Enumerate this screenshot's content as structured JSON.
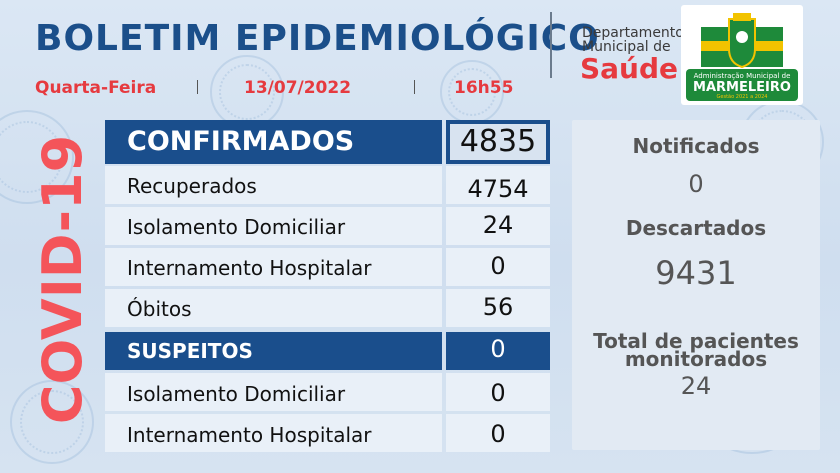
{
  "header": {
    "title": "BOLETIM EPIDEMIOLÓGICO",
    "weekday": "Quarta-Feira",
    "date": "13/07/2022",
    "time": "16h55",
    "department_line1": "Departamento",
    "department_line2": "Municipal de",
    "department_name": "Saúde"
  },
  "logo": {
    "text_top": "Administração Municipal de",
    "text_main": "MARMELEIRO",
    "text_bottom": "Gestão 2021 a 2024"
  },
  "side_label": "COVID-19",
  "table": {
    "confirmados": {
      "label": "CONFIRMADOS",
      "value": "4835"
    },
    "rows": [
      {
        "label": "Recuperados",
        "value": "4754"
      },
      {
        "label": "Isolamento Domiciliar",
        "value": "24"
      },
      {
        "label": "Internamento Hospitalar",
        "value": "0"
      },
      {
        "label": "Óbitos",
        "value": "56"
      }
    ],
    "suspeitos": {
      "label": "SUSPEITOS",
      "value": "0"
    },
    "suspeitos_rows": [
      {
        "label": "Isolamento Domiciliar",
        "value": "0"
      },
      {
        "label": "Internamento Hospitalar",
        "value": "0"
      }
    ]
  },
  "right": {
    "notificados_label": "Notificados",
    "notificados_value": "0",
    "descartados_label": "Descartados",
    "descartados_value": "9431",
    "monitorados_label1": "Total de pacientes",
    "monitorados_label2": "monitorados",
    "monitorados_value": "24"
  },
  "colors": {
    "primary": "#1a4e8c",
    "accent": "#e63a3f",
    "covid": "#f4545a",
    "logo_green": "#1e8a3a",
    "logo_yellow": "#f2c300"
  }
}
